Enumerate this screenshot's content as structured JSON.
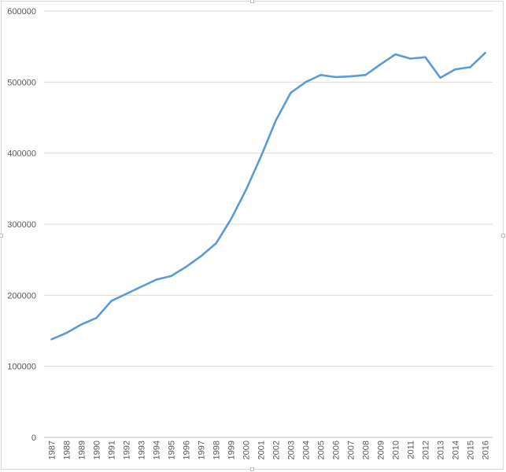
{
  "chart_data": {
    "type": "line",
    "title": "",
    "xlabel": "",
    "ylabel": "",
    "ylim": [
      0,
      600000
    ],
    "yticks": [
      0,
      100000,
      200000,
      300000,
      400000,
      500000,
      600000
    ],
    "grid": true,
    "legend": "none",
    "categories": [
      "1987",
      "1988",
      "1989",
      "1990",
      "1991",
      "1992",
      "1993",
      "1994",
      "1995",
      "1996",
      "1997",
      "1998",
      "1999",
      "2000",
      "2001",
      "2002",
      "2003",
      "2004",
      "2005",
      "2006",
      "2007",
      "2008",
      "2009",
      "2010",
      "2011",
      "2012",
      "2013",
      "2014",
      "2015",
      "2016"
    ],
    "series": [
      {
        "values": [
          138000,
          147000,
          159000,
          168000,
          192000,
          202000,
          212000,
          222000,
          227000,
          240000,
          255000,
          273000,
          307000,
          348000,
          395000,
          446000,
          485000,
          500000,
          510000,
          507000,
          508000,
          510000,
          525000,
          539000,
          533000,
          535000,
          506000,
          518000,
          521000,
          541000
        ],
        "color": "#5b9bd5"
      }
    ]
  }
}
